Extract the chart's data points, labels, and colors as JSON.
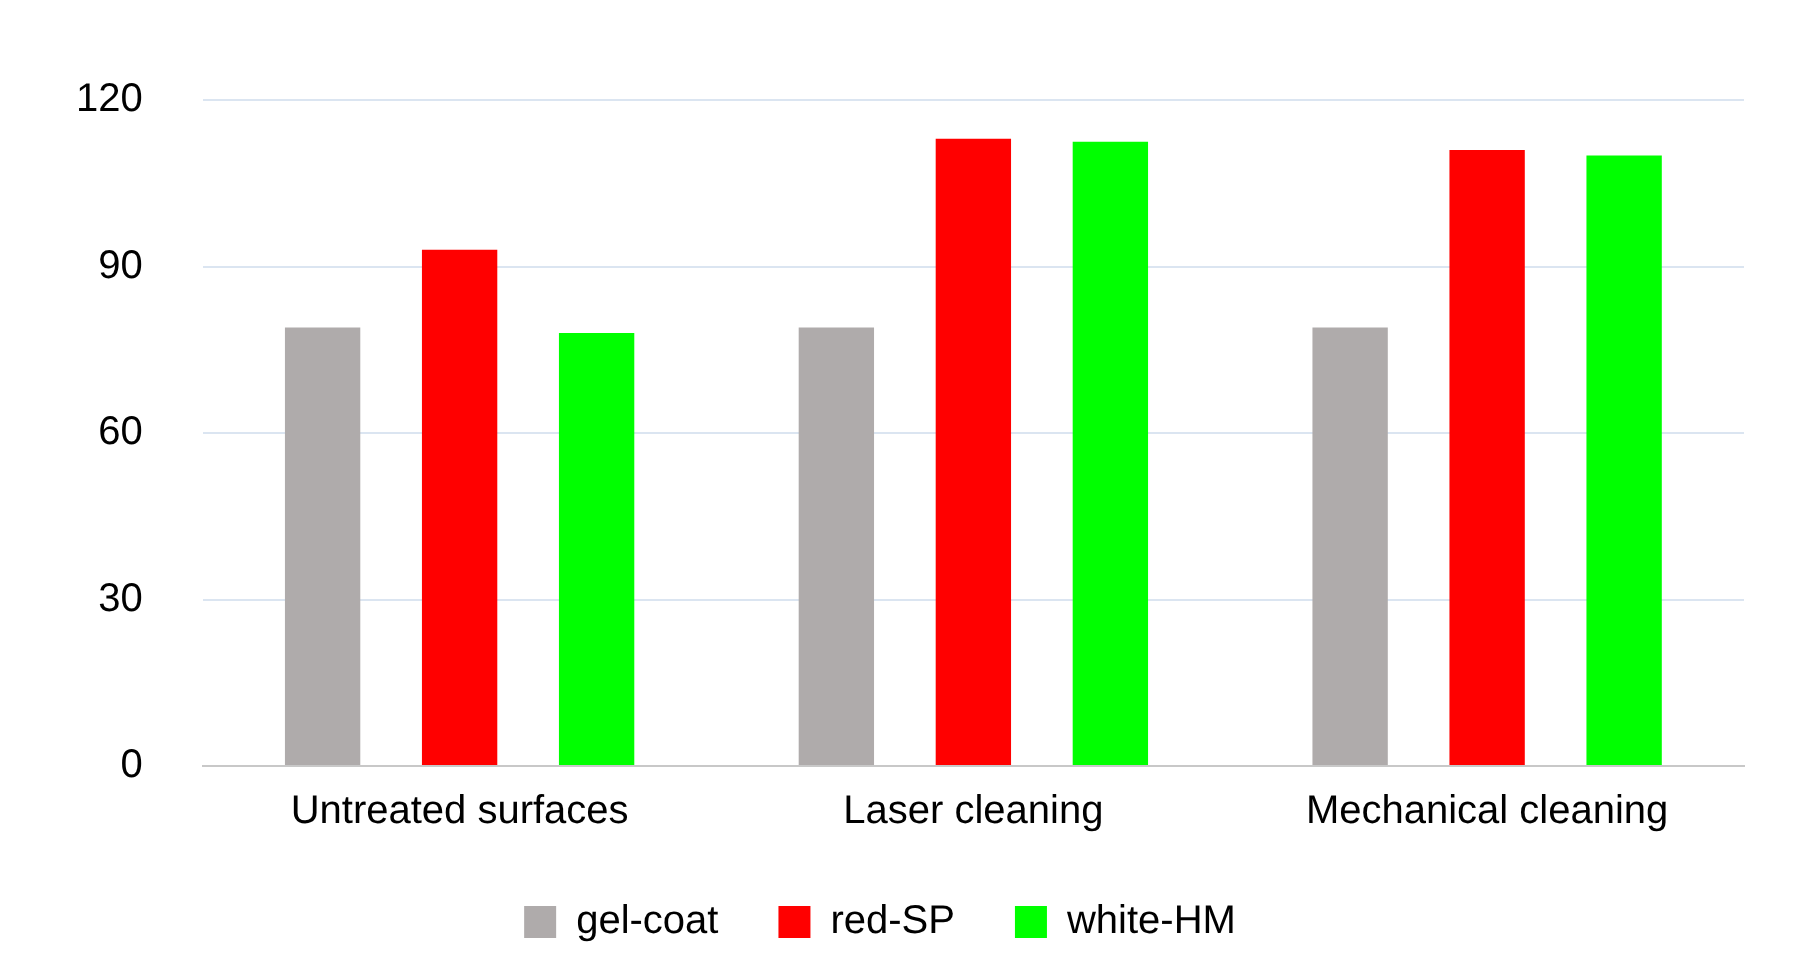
{
  "chart_data": {
    "type": "bar",
    "categories": [
      "Untreated surfaces",
      "Laser cleaning",
      "Mechanical cleaning"
    ],
    "series": [
      {
        "name": "gel-coat",
        "color": "#afabab",
        "values": [
          79,
          79,
          79
        ]
      },
      {
        "name": "red-SP",
        "color": "#ff0000",
        "values": [
          93,
          113,
          111
        ]
      },
      {
        "name": "white-HM",
        "color": "#00ff00",
        "values": [
          78,
          112.5,
          110
        ]
      }
    ],
    "ylim": [
      0,
      120
    ],
    "yticks": [
      0,
      30,
      60,
      90,
      120
    ],
    "grid": "y",
    "legend": "bottom"
  }
}
